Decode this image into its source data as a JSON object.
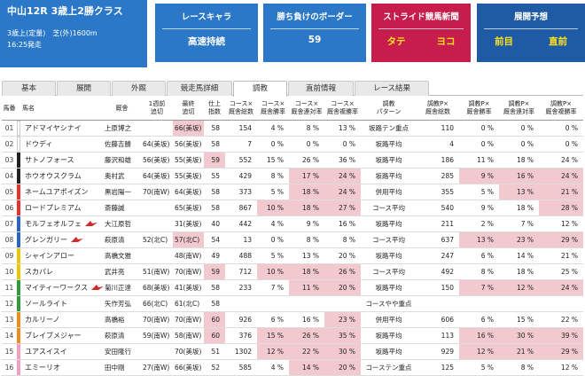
{
  "race": {
    "title": "中山12R 3歳上2勝クラス",
    "line1": "3歳上(定量)　芝(外)1600m",
    "line2": "16:25発走"
  },
  "cards": {
    "character": {
      "label": "レースキャラ",
      "value": "高速持続"
    },
    "border": {
      "label": "勝ち負けのボーダー",
      "value": "59"
    },
    "stride": {
      "label": "ストライド競馬新聞",
      "left": "タテ",
      "right": "ヨコ"
    },
    "forecast": {
      "label": "展開予想",
      "left": "前目",
      "right": "直前"
    }
  },
  "tabs": [
    "基本",
    "展開",
    "外厩",
    "競走馬詳細",
    "調教",
    "直前情報",
    "レース結果"
  ],
  "active_tab": "調教",
  "headers": [
    "馬番",
    "",
    "馬名",
    "厩舎",
    "1週前\n追切",
    "最終\n追切",
    "仕上\n指数",
    "コース×\n厩舎総数",
    "コース×\n厩舎勝率",
    "コース×\n厩舎連対率",
    "コース×\n厩舎複勝率",
    "調教\nパターン",
    "調教P×\n厩舎総数",
    "調教P×\n厩舎勝率",
    "調教P×\n厩舎連対率",
    "調教P×\n厩舎複勝率"
  ],
  "colors": {
    "highlight": "#f2c9cf",
    "frames": [
      "#ffffff",
      "#222222",
      "#e8302e",
      "#2b62c8",
      "#e8c600",
      "#2e9a3c",
      "#f08a1e",
      "#f2a0c0"
    ]
  },
  "rows": [
    {
      "no": "01",
      "frame": 0,
      "name": "アドマイヤシナイ",
      "trainer": "上原博之",
      "w1": "",
      "wf": "66(美坂)",
      "idx": "58",
      "ct": "154",
      "cw": "4 %",
      "cr": "8 %",
      "cp": "13 %",
      "pat": "坂路テン重点",
      "pt": "110",
      "pw": "0 %",
      "pr": "0 %",
      "pp": "0 %",
      "hl": [
        "wf"
      ]
    },
    {
      "no": "02",
      "frame": 0,
      "name": "ドウディ",
      "trainer": "佐藤吉勝",
      "w1": "64(美坂)",
      "wf": "56(美坂)",
      "idx": "58",
      "ct": "7",
      "cw": "0 %",
      "cr": "0 %",
      "cp": "0 %",
      "pat": "坂路平均",
      "pt": "4",
      "pw": "0 %",
      "pr": "0 %",
      "pp": "0 %",
      "hl": []
    },
    {
      "no": "03",
      "frame": 1,
      "name": "サトノフォース",
      "trainer": "藤沢和雄",
      "w1": "56(美坂)",
      "wf": "55(美坂)",
      "idx": "59",
      "ct": "552",
      "cw": "15 %",
      "cr": "26 %",
      "cp": "36 %",
      "pat": "坂路平均",
      "pt": "186",
      "pw": "11 %",
      "pr": "18 %",
      "pp": "24 %",
      "hl": [
        "idx"
      ]
    },
    {
      "no": "04",
      "frame": 1,
      "name": "ホウオウスクラム",
      "trainer": "奥村武",
      "w1": "64(美坂)",
      "wf": "55(美坂)",
      "idx": "55",
      "ct": "429",
      "cw": "8 %",
      "cr": "17 %",
      "cp": "24 %",
      "pat": "坂路平均",
      "pt": "285",
      "pw": "9 %",
      "pr": "16 %",
      "pp": "24 %",
      "hl": [
        "cr",
        "cp",
        "pw",
        "pr",
        "pp"
      ]
    },
    {
      "no": "05",
      "frame": 2,
      "name": "ネームユアポイズン",
      "trainer": "黒岩陽一",
      "w1": "70(南W)",
      "wf": "64(美坂)",
      "idx": "58",
      "ct": "373",
      "cw": "5 %",
      "cr": "18 %",
      "cp": "24 %",
      "pat": "併用平均",
      "pt": "355",
      "pw": "5 %",
      "pr": "13 %",
      "pp": "21 %",
      "hl": [
        "cr",
        "cp",
        "pr",
        "pp"
      ]
    },
    {
      "no": "06",
      "frame": 2,
      "name": "ロードプレミアム",
      "trainer": "斎藤誠",
      "w1": "",
      "wf": "65(美坂)",
      "idx": "58",
      "ct": "867",
      "cw": "10 %",
      "cr": "18 %",
      "cp": "27 %",
      "pat": "コース平均",
      "pt": "540",
      "pw": "9 %",
      "pr": "18 %",
      "pp": "28 %",
      "hl": [
        "cw",
        "cr",
        "cp",
        "pp"
      ]
    },
    {
      "no": "07",
      "frame": 3,
      "name": "モルフェオルフェ",
      "trainer": "大江原哲",
      "w1": "",
      "wf": "31(美坂)",
      "idx": "40",
      "ct": "442",
      "cw": "4 %",
      "cr": "9 %",
      "cp": "16 %",
      "pat": "坂路平均",
      "pt": "211",
      "pw": "2 %",
      "pr": "7 %",
      "pp": "12 %",
      "hl": [],
      "flag": true
    },
    {
      "no": "08",
      "frame": 3,
      "name": "グレンガリー",
      "trainer": "萩原清",
      "w1": "52(北C)",
      "wf": "57(北C)",
      "idx": "54",
      "ct": "13",
      "cw": "0 %",
      "cr": "8 %",
      "cp": "8 %",
      "pat": "コース平均",
      "pt": "637",
      "pw": "13 %",
      "pr": "23 %",
      "pp": "29 %",
      "hl": [
        "wf",
        "pw",
        "pr",
        "pp"
      ],
      "flag": true
    },
    {
      "no": "09",
      "frame": 4,
      "name": "シャインアロー",
      "trainer": "高橋文雅",
      "w1": "",
      "wf": "48(南W)",
      "idx": "49",
      "ct": "488",
      "cw": "5 %",
      "cr": "13 %",
      "cp": "20 %",
      "pat": "坂路平均",
      "pt": "247",
      "pw": "6 %",
      "pr": "14 %",
      "pp": "21 %",
      "hl": []
    },
    {
      "no": "10",
      "frame": 4,
      "name": "スカパレ",
      "trainer": "武井亮",
      "w1": "51(南W)",
      "wf": "70(南W)",
      "idx": "59",
      "ct": "712",
      "cw": "10 %",
      "cr": "18 %",
      "cp": "26 %",
      "pat": "コース平均",
      "pt": "492",
      "pw": "8 %",
      "pr": "18 %",
      "pp": "25 %",
      "hl": [
        "idx",
        "cw",
        "cr",
        "cp"
      ]
    },
    {
      "no": "11",
      "frame": 5,
      "name": "マイティーワークス",
      "trainer": "菊川正達",
      "w1": "68(美坂)",
      "wf": "41(美坂)",
      "idx": "58",
      "ct": "233",
      "cw": "7 %",
      "cr": "11 %",
      "cp": "20 %",
      "pat": "坂路平均",
      "pt": "150",
      "pw": "7 %",
      "pr": "12 %",
      "pp": "24 %",
      "hl": [
        "cr",
        "cp",
        "pw",
        "pr",
        "pp"
      ],
      "flag": true
    },
    {
      "no": "12",
      "frame": 5,
      "name": "ソールライト",
      "trainer": "矢作芳弘",
      "w1": "66(北C)",
      "wf": "61(北C)",
      "idx": "58",
      "ct": "",
      "cw": "",
      "cr": "",
      "cp": "",
      "pat": "コースやや重点",
      "pt": "",
      "pw": "",
      "pr": "",
      "pp": "",
      "hl": []
    },
    {
      "no": "13",
      "frame": 6,
      "name": "カルリーノ",
      "trainer": "高橋裕",
      "w1": "70(南W)",
      "wf": "70(南W)",
      "idx": "60",
      "ct": "926",
      "cw": "6 %",
      "cr": "16 %",
      "cp": "23 %",
      "pat": "併用平均",
      "pt": "606",
      "pw": "6 %",
      "pr": "15 %",
      "pp": "22 %",
      "hl": [
        "idx",
        "cp"
      ]
    },
    {
      "no": "14",
      "frame": 6,
      "name": "ブレイブメジャー",
      "trainer": "萩原清",
      "w1": "59(南W)",
      "wf": "58(南W)",
      "idx": "60",
      "ct": "376",
      "cw": "15 %",
      "cr": "26 %",
      "cp": "35 %",
      "pat": "坂路平均",
      "pt": "113",
      "pw": "16 %",
      "pr": "30 %",
      "pp": "39 %",
      "hl": [
        "idx",
        "cw",
        "cr",
        "cp",
        "pw",
        "pr",
        "pp"
      ]
    },
    {
      "no": "15",
      "frame": 7,
      "name": "ユアスイスイ",
      "trainer": "安田隆行",
      "w1": "",
      "wf": "70(美坂)",
      "idx": "51",
      "ct": "1302",
      "cw": "12 %",
      "cr": "22 %",
      "cp": "30 %",
      "pat": "坂路平均",
      "pt": "929",
      "pw": "12 %",
      "pr": "21 %",
      "pp": "29 %",
      "hl": [
        "cw",
        "cr",
        "cp",
        "pw",
        "pr",
        "pp"
      ]
    },
    {
      "no": "16",
      "frame": 7,
      "name": "エミーリオ",
      "trainer": "田中剛",
      "w1": "27(南W)",
      "wf": "66(美坂)",
      "idx": "52",
      "ct": "585",
      "cw": "4 %",
      "cr": "14 %",
      "cp": "20 %",
      "pat": "コーステン重点",
      "pt": "125",
      "pw": "5 %",
      "pr": "8 %",
      "pp": "12 %",
      "hl": [
        "cr",
        "cp"
      ]
    }
  ]
}
